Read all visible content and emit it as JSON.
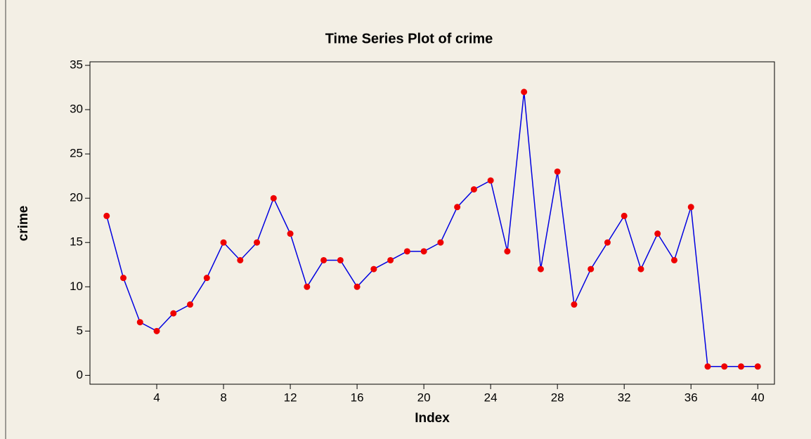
{
  "chart_data": {
    "type": "line",
    "title": "Time Series Plot of crime",
    "x_label": "Index",
    "y_label": "crime",
    "x": [
      1,
      2,
      3,
      4,
      5,
      6,
      7,
      8,
      9,
      10,
      11,
      12,
      13,
      14,
      15,
      16,
      17,
      18,
      19,
      20,
      21,
      22,
      23,
      24,
      25,
      26,
      27,
      28,
      29,
      30,
      31,
      32,
      33,
      34,
      35,
      36,
      37,
      38,
      39,
      40
    ],
    "series": [
      {
        "name": "crime",
        "color": "#0000e0",
        "marker_color": "#ee0000",
        "values": [
          18,
          11,
          6,
          5,
          7,
          8,
          11,
          15,
          13,
          15,
          20,
          16,
          10,
          13,
          13,
          10,
          12,
          13,
          14,
          14,
          15,
          19,
          21,
          22,
          14,
          32,
          12,
          23,
          8,
          12,
          15,
          18,
          12,
          16,
          13,
          19,
          1,
          1,
          1,
          1
        ]
      }
    ],
    "xlim": [
      0,
      41
    ],
    "ylim": [
      -1,
      35.4
    ],
    "xticks": [
      4,
      8,
      12,
      16,
      20,
      24,
      28,
      32,
      36,
      40
    ],
    "yticks": [
      0,
      5,
      10,
      15,
      20,
      25,
      30,
      35
    ]
  }
}
